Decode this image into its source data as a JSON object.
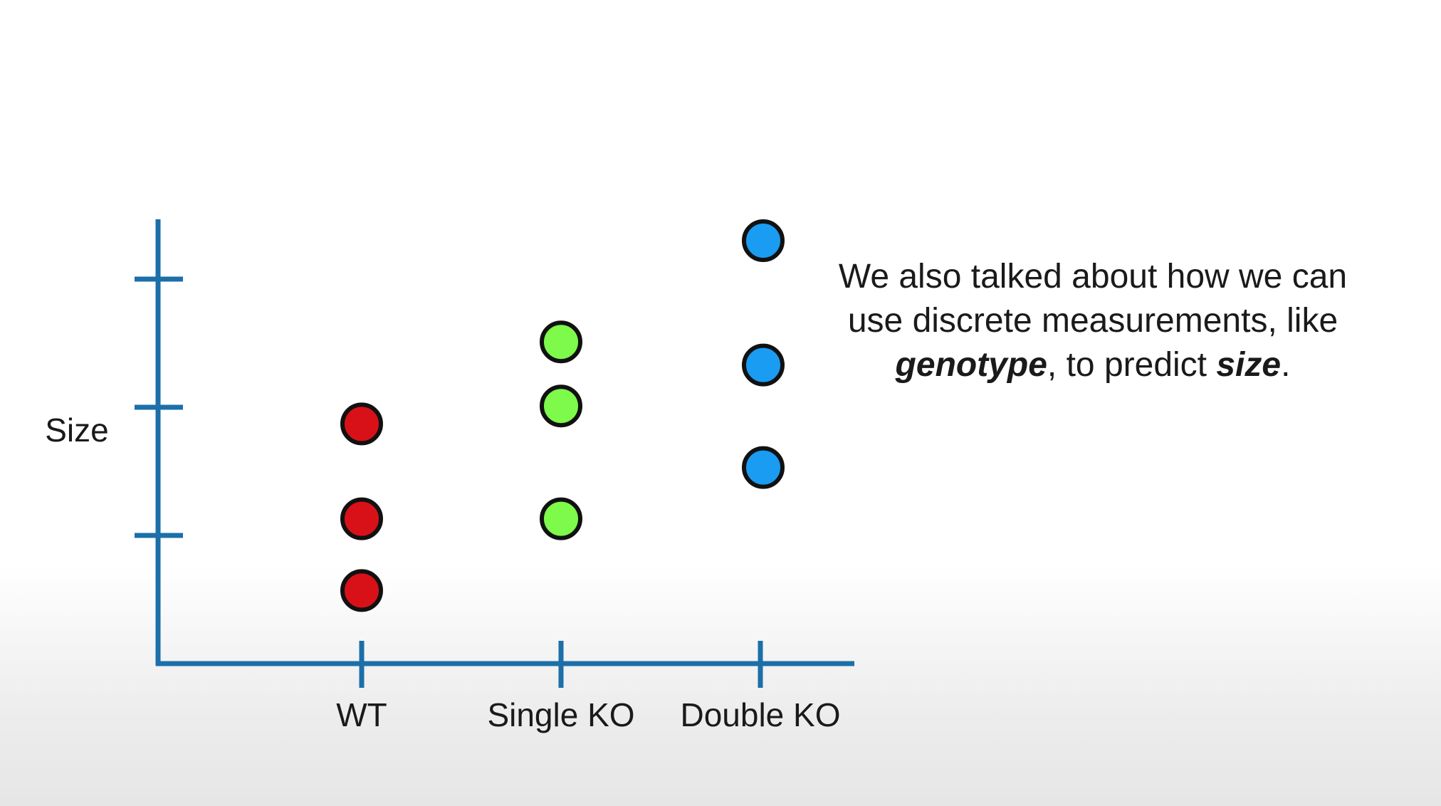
{
  "chart_data": {
    "type": "scatter",
    "ylabel": "Size",
    "categories": [
      "WT",
      "Single KO",
      "Double KO"
    ],
    "series": [
      {
        "category": "WT",
        "color": "#d81118",
        "values": [
          1.87,
          1.13,
          0.57
        ]
      },
      {
        "category": "Single KO",
        "color": "#7dfa4a",
        "values": [
          2.51,
          2.01,
          1.13
        ]
      },
      {
        "category": "Double KO",
        "color": "#1a9cf2",
        "values": [
          3.3,
          2.33,
          1.53
        ]
      }
    ],
    "yticks": [
      1,
      2,
      3
    ],
    "ylim": [
      0,
      3.4
    ],
    "grid": false,
    "colors": {
      "axis": "#1c6fa8",
      "marker_edge": "#111111"
    }
  },
  "caption": {
    "line1": "We also talked about how we can",
    "line2": "use discrete measurements, like",
    "term1": "genotype",
    "mid": ", to predict ",
    "term2": "size",
    "end": "."
  }
}
